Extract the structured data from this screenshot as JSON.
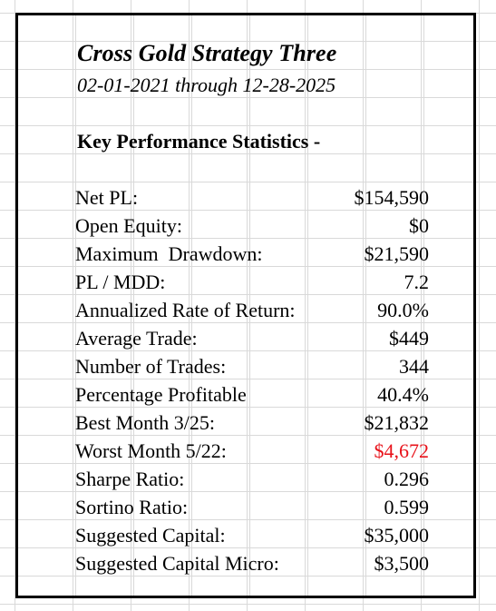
{
  "report": {
    "title": "Cross Gold Strategy Three",
    "date_range": "02-01-2021 through 12-28-2025",
    "section_heading": "Key Performance Statistics -",
    "stats": [
      {
        "label": "Net PL:",
        "value": "$154,590",
        "negative": false
      },
      {
        "label": "Open Equity:",
        "value": "$0",
        "negative": false
      },
      {
        "label": "Maximum  Drawdown:",
        "value": "$21,590",
        "negative": false
      },
      {
        "label": "PL / MDD:",
        "value": "7.2",
        "negative": false
      },
      {
        "label": "Annualized Rate of Return:",
        "value": "90.0%",
        "negative": false
      },
      {
        "label": "Average Trade:",
        "value": "$449",
        "negative": false
      },
      {
        "label": "Number of Trades:",
        "value": "344",
        "negative": false
      },
      {
        "label": "Percentage Profitable",
        "value": "40.4%",
        "negative": false
      },
      {
        "label": "Best Month 3/25:",
        "value": "$21,832",
        "negative": false
      },
      {
        "label": "Worst Month 5/22:",
        "value": "$4,672",
        "negative": true
      },
      {
        "label": "Sharpe Ratio:",
        "value": "0.296",
        "negative": false
      },
      {
        "label": "Sortino Ratio:",
        "value": "0.599",
        "negative": false
      },
      {
        "label": "Suggested Capital:",
        "value": "$35,000",
        "negative": false
      },
      {
        "label": "Suggested Capital Micro:",
        "value": "$3,500",
        "negative": false
      }
    ]
  },
  "colors": {
    "text": "#000000",
    "negative_value": "#e8121a",
    "gridline": "#d9d9d9",
    "border": "#000000"
  }
}
